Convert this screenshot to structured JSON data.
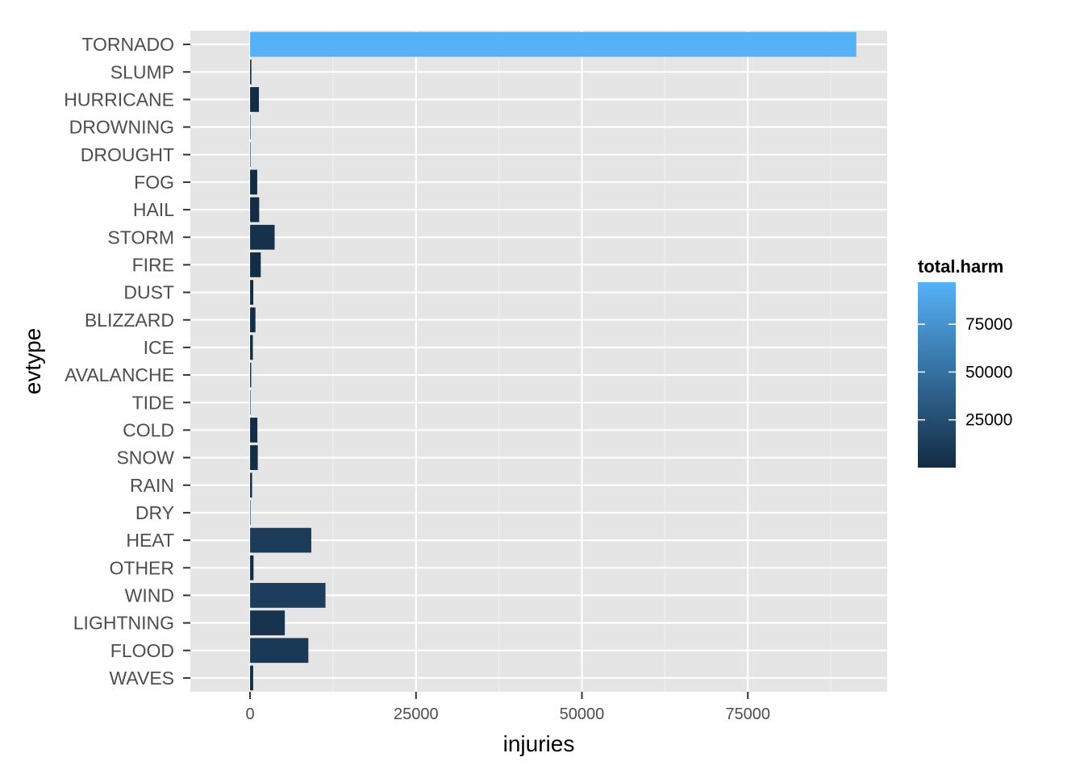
{
  "chart_data": {
    "type": "bar",
    "orientation": "horizontal",
    "xlabel": "injuries",
    "ylabel": "evtype",
    "xlim": [
      -9000,
      96000
    ],
    "x_ticks": [
      0,
      25000,
      50000,
      75000
    ],
    "x_tick_labels": [
      "0",
      "25000",
      "50000",
      "75000"
    ],
    "grid": true,
    "categories": [
      "TORNADO",
      "SLUMP",
      "HURRICANE",
      "DROWNING",
      "DROUGHT",
      "FOG",
      "HAIL",
      "STORM",
      "FIRE",
      "DUST",
      "BLIZZARD",
      "ICE",
      "AVALANCHE",
      "TIDE",
      "COLD",
      "SNOW",
      "RAIN",
      "DRY",
      "HEAT",
      "OTHER",
      "WIND",
      "LIGHTNING",
      "FLOOD",
      "WAVES"
    ],
    "values": [
      91346,
      200,
      1333,
      2,
      19,
      1077,
      1371,
      3700,
      1608,
      483,
      805,
      417,
      170,
      40,
      1100,
      1160,
      300,
      19,
      9224,
      520,
      11360,
      5231,
      8782,
      465
    ],
    "fill_values": [
      96979,
      205,
      1468,
      2,
      25,
      1158,
      1386,
      4150,
      1698,
      507,
      906,
      526,
      394,
      45,
      1600,
      1280,
      406,
      25,
      12362,
      580,
      12880,
      6047,
      10305,
      780
    ],
    "legend": {
      "title": "total.harm",
      "placement": "right",
      "ticks": [
        25000,
        50000,
        75000
      ],
      "tick_labels": [
        "25000",
        "50000",
        "75000"
      ],
      "range": [
        0,
        96979
      ],
      "low_color": "#132B43",
      "high_color": "#56B1F7"
    },
    "colors": {
      "panel": "#E5E5E5",
      "grid_major": "#FFFFFF",
      "grid_minor": "#F2F2F2"
    }
  }
}
